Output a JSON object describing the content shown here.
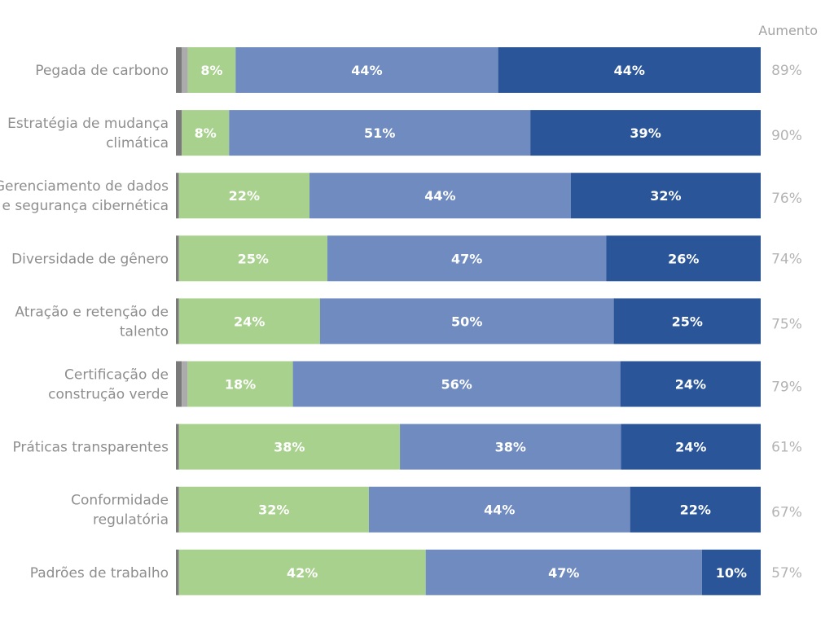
{
  "chart_data": {
    "type": "bar",
    "orientation": "horizontal",
    "stacked": true,
    "increase_header": "Aumento",
    "categories": [
      [
        "Pegada de carbono"
      ],
      [
        "Estratégia de mudança",
        "climática"
      ],
      [
        "Gerenciamento de dados",
        "e segurança cibernética"
      ],
      [
        "Diversidade de gênero"
      ],
      [
        "Atração e retenção de",
        "talento"
      ],
      [
        "Certificação de",
        "construção verde"
      ],
      [
        "Práticas transparentes"
      ],
      [
        "Conformidade",
        "regulatória"
      ],
      [
        "Padrões de trabalho"
      ]
    ],
    "series": [
      {
        "color": "#7a7a7a",
        "values": [
          1,
          1,
          0.5,
          0.5,
          0.5,
          1,
          0.5,
          0.5,
          0.5
        ]
      },
      {
        "color": "#ababab",
        "values": [
          1,
          0,
          0,
          0,
          0,
          1,
          0,
          0,
          0
        ]
      },
      {
        "color": "#a8d18d",
        "values": [
          8,
          8,
          22,
          25,
          24,
          18,
          38,
          32,
          42
        ],
        "labels": [
          "8%",
          "8%",
          "22%",
          "25%",
          "24%",
          "18%",
          "38%",
          "32%",
          "42%"
        ]
      },
      {
        "color": "#6f8bbf",
        "values": [
          44,
          51,
          44,
          47,
          50,
          56,
          38,
          44,
          47
        ],
        "labels": [
          "44%",
          "51%",
          "44%",
          "47%",
          "50%",
          "56%",
          "38%",
          "44%",
          "47%"
        ]
      },
      {
        "color": "#2a5598",
        "values": [
          44,
          39,
          32,
          26,
          25,
          24,
          24,
          22,
          10
        ],
        "labels": [
          "44%",
          "39%",
          "32%",
          "26%",
          "25%",
          "24%",
          "24%",
          "22%",
          "10%"
        ]
      }
    ],
    "increase": [
      "89%",
      "90%",
      "76%",
      "74%",
      "75%",
      "79%",
      "61%",
      "67%",
      "57%"
    ]
  }
}
